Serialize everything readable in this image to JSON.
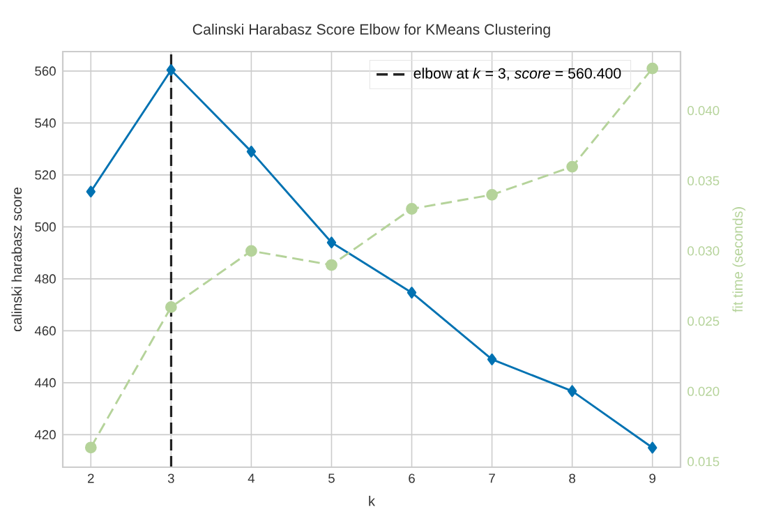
{
  "chart_data": {
    "type": "line",
    "title": "Calinski Harabasz Score Elbow for KMeans Clustering",
    "xlabel": "k",
    "ylabel": "calinski harabasz score",
    "y2label": "fit time (seconds)",
    "x": [
      2,
      3,
      4,
      5,
      6,
      7,
      8,
      9
    ],
    "series": [
      {
        "color": "#0072b2",
        "marker": "diamond",
        "line_style": "solid",
        "values": [
          513.6,
          560.4,
          529,
          494,
          474.7,
          449,
          436.8,
          415
        ]
      },
      {
        "color": "#b5d39a",
        "marker": "circle",
        "line_style": "dashed",
        "axis": "y2",
        "values": [
          0.016,
          0.026,
          0.03,
          0.029,
          0.033,
          0.034,
          0.036,
          0.043
        ]
      }
    ],
    "xlim": [
      1.65,
      9.35
    ],
    "ylim": [
      407.5,
      567.5
    ],
    "y2lim": [
      0.0146,
      0.0442
    ],
    "xticks": [
      2,
      3,
      4,
      5,
      6,
      7,
      8,
      9
    ],
    "yticks": [
      420,
      440,
      460,
      480,
      500,
      520,
      540,
      560
    ],
    "y2ticks": [
      {
        "value": 0.015,
        "label": "0.015"
      },
      {
        "value": 0.02,
        "label": "0.020"
      },
      {
        "value": 0.025,
        "label": "0.025"
      },
      {
        "value": 0.03,
        "label": "0.030"
      },
      {
        "value": 0.035,
        "label": "0.035"
      },
      {
        "value": 0.04,
        "label": "0.040"
      }
    ],
    "ref_lines": [
      {
        "axis": "x",
        "value": 3,
        "label": "elbow at *k* = 3, *score* = 560.400",
        "color": "#222222",
        "line_style": "dashed"
      }
    ],
    "grid": true,
    "legend": "top right"
  }
}
